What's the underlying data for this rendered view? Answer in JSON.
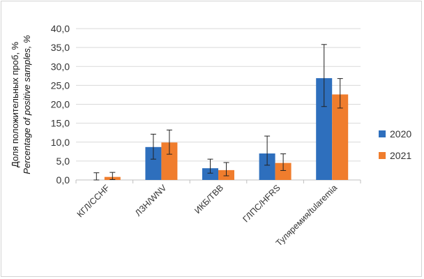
{
  "chart_data": {
    "type": "bar",
    "ylabel_ru": "Доля положительных проб, %",
    "ylabel_en": "Percentage of positive samples, %",
    "ylim": [
      0,
      40
    ],
    "yticks": [
      "0,0",
      "5,0",
      "10,0",
      "15,0",
      "20,0",
      "25,0",
      "30,0",
      "35,0",
      "40,0"
    ],
    "grid": true,
    "legend_position": "right",
    "categories": [
      "КГЛ/CCHF",
      "ЛЗН/WNV",
      "ИКБ/TBB",
      "ГЛПС/HFRS",
      "Туляремия/tularemia"
    ],
    "series": [
      {
        "name": "2020",
        "color": "#2e6fbd",
        "values": [
          0.0,
          8.7,
          3.1,
          7.0,
          26.9
        ],
        "err_low": [
          0.0,
          5.5,
          1.8,
          3.9,
          19.4
        ],
        "err_high": [
          1.9,
          12.1,
          5.5,
          11.6,
          35.8
        ]
      },
      {
        "name": "2021",
        "color": "#f07d2d",
        "values": [
          0.8,
          9.9,
          2.6,
          4.5,
          22.6
        ],
        "err_low": [
          0.1,
          6.8,
          1.1,
          2.5,
          19.0
        ],
        "err_high": [
          2.0,
          13.2,
          4.6,
          6.9,
          26.8
        ]
      }
    ]
  }
}
